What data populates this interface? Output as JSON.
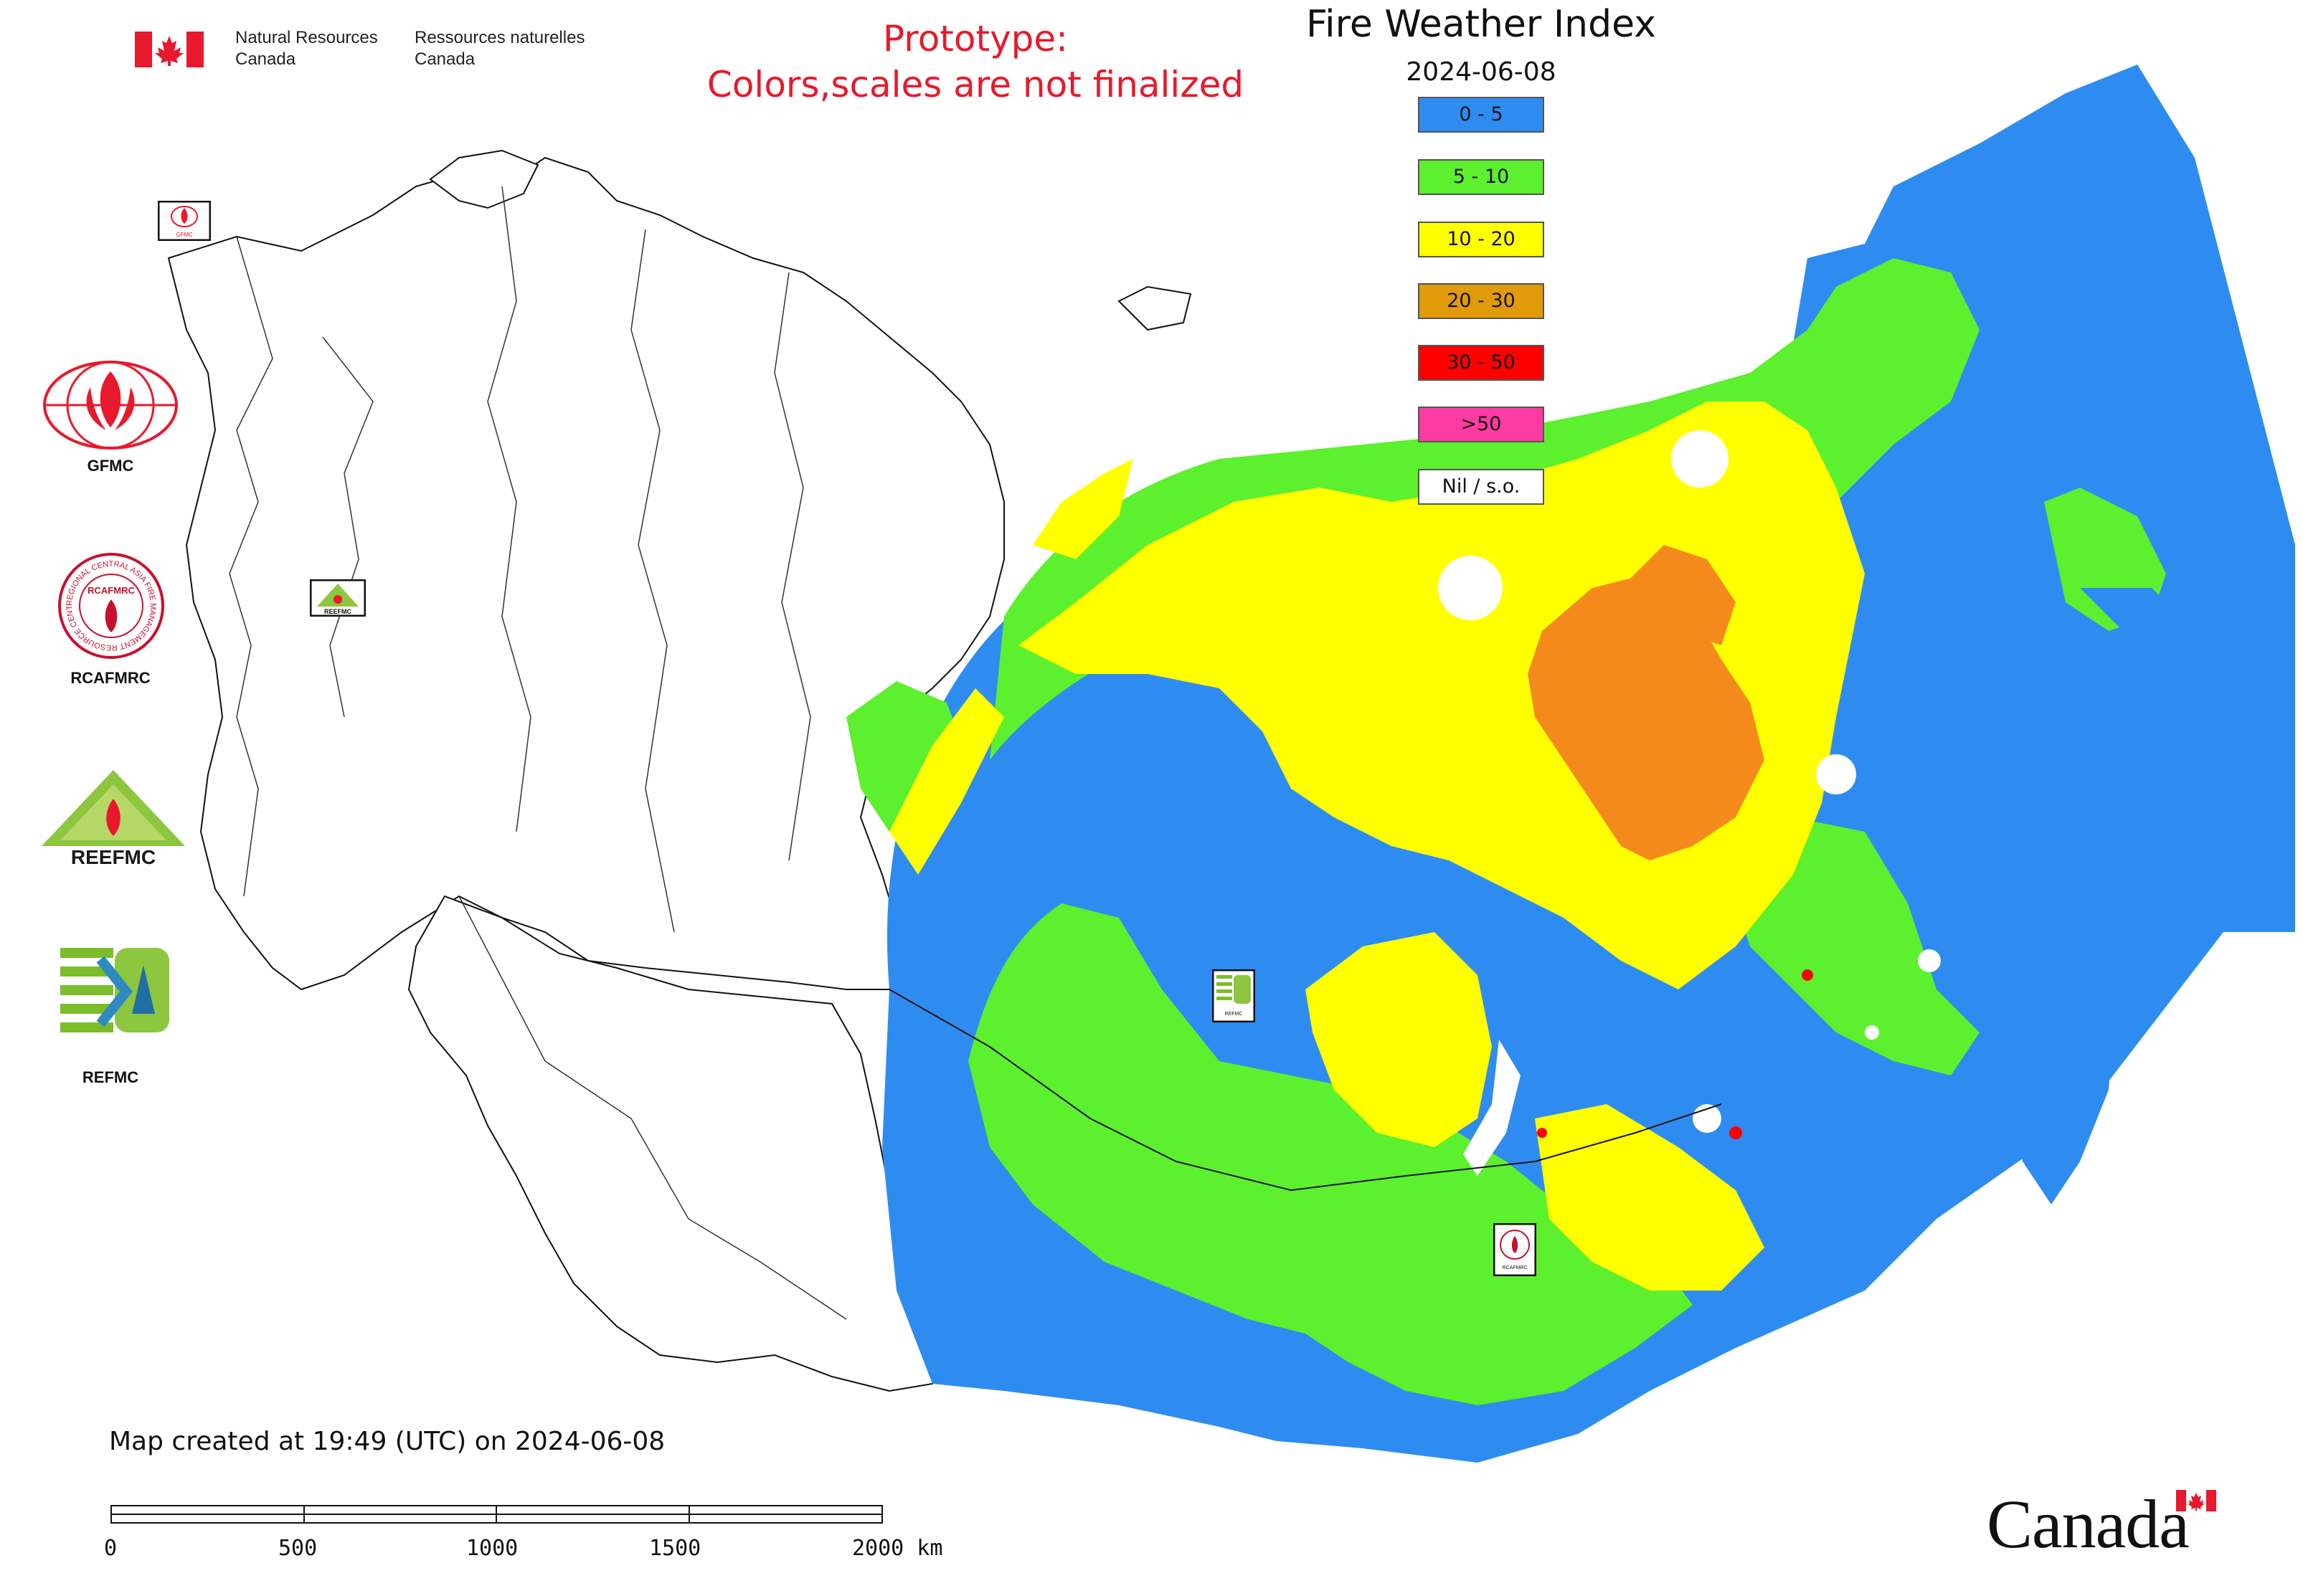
{
  "header": {
    "dept_en_line1": "Natural Resources",
    "dept_en_line2": "Canada",
    "dept_fr_line1": "Ressources naturelles",
    "dept_fr_line2": "Canada",
    "prototype_line1": "Prototype:",
    "prototype_line2": "Colors,scales are not finalized"
  },
  "map": {
    "title": "Fire Weather Index",
    "date": "2024-06-08",
    "legend": [
      {
        "label": "0 - 5",
        "color": "#2e8cf0"
      },
      {
        "label": "5 - 10",
        "color": "#5cf02e"
      },
      {
        "label": "10 - 20",
        "color": "#ffff00"
      },
      {
        "label": "20 - 30",
        "color": "#e09a0a"
      },
      {
        "label": "30 - 50",
        "color": "#ff0000"
      },
      {
        "label": ">50",
        "color": "#ff3aa0"
      },
      {
        "label": "Nil / s.o.",
        "color": "#ffffff"
      }
    ],
    "created_text": "Map created at 19:49 (UTC) on 2024-06-08",
    "scale_labels": [
      "0",
      "500",
      "1000",
      "1500",
      "2000 km"
    ]
  },
  "logos": {
    "gfmc": "GFMC",
    "rcafmrc": "RCAFMRC",
    "reefmc": "REEFMC",
    "refmc": "REFMC",
    "rcafmrc_ring": "REGIONAL CENTRAL ASIA FIRE MANAGEMENT RESOURCE CENTER",
    "rcafmrc_center": "RCAFMRC",
    "reefmc_mark": "REEFMC",
    "gfmc_mark": "GFMC",
    "rcafmrc_mark": "RCAFMRC",
    "refmc_mark": "REFMC"
  },
  "footer": {
    "wordmark": "Canada"
  }
}
